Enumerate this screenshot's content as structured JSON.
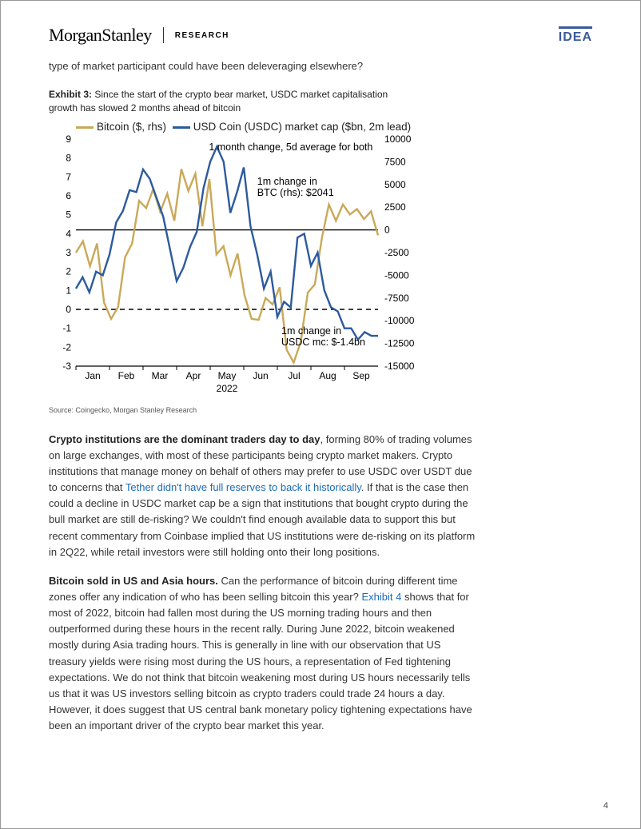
{
  "header": {
    "brand_first": "Morgan",
    "brand_second": "Stanley",
    "research": "RESEARCH",
    "idea": "IDEA"
  },
  "intro": "type of market participant could have been deleveraging elsewhere?",
  "exhibit": {
    "label": "Exhibit 3:",
    "caption": "Since the start of the crypto bear market, USDC market capitalisation growth has slowed 2 months ahead of bitcoin",
    "legend_bitcoin": "Bitcoin ($, rhs)",
    "legend_usdc": "USD Coin (USDC) market cap ($bn, 2m lead)",
    "colors": {
      "bitcoin": "#c9a959",
      "usdc": "#2c5a9e",
      "grid": "#d8d8d8",
      "axis": "#000000",
      "background": "#ffffff",
      "zero_dashed": "#000000"
    },
    "annotations": {
      "top": "1 month change, 5d average for both",
      "btc_label1": "1m change in",
      "btc_label2": "BTC (rhs): $2041",
      "usdc_label1": "1m change in",
      "usdc_label2": "USDC mc: $-1.4bn"
    },
    "left_axis": {
      "min": -3,
      "max": 9,
      "ticks": [
        -3,
        -2,
        -1,
        0,
        1,
        2,
        3,
        4,
        5,
        6,
        7,
        8,
        9
      ]
    },
    "right_axis": {
      "min": -15000,
      "max": 10000,
      "ticks": [
        -15000,
        -12500,
        -10000,
        -7500,
        -5000,
        -2500,
        0,
        2500,
        5000,
        7500,
        10000
      ],
      "zero_at_left_value": 4.2
    },
    "x_axis": {
      "labels": [
        "Jan",
        "Feb",
        "Mar",
        "Apr",
        "May",
        "Jun",
        "Jul",
        "Aug",
        "Sep"
      ],
      "year": "2022"
    },
    "series_bitcoin_rhs": [
      -2500,
      -1250,
      -4000,
      -1500,
      -8000,
      -9800,
      -8500,
      -3000,
      -1500,
      3200,
      2400,
      4500,
      2000,
      4000,
      1000,
      6700,
      4300,
      6200,
      400,
      5600,
      -2700,
      -1800,
      -5000,
      -2600,
      -7200,
      -9800,
      -9900,
      -7500,
      -8200,
      -6300,
      -13200,
      -14600,
      -12300,
      -6900,
      -6000,
      -900,
      2800,
      1000,
      2800,
      1700,
      2300,
      1200,
      2041,
      -600
    ],
    "series_usdc_left": [
      1.1,
      1.7,
      0.9,
      2.0,
      1.8,
      2.9,
      4.6,
      5.2,
      6.3,
      6.2,
      7.4,
      6.9,
      5.9,
      4.9,
      3.2,
      1.5,
      2.2,
      3.3,
      4.1,
      6.4,
      7.8,
      8.6,
      7.8,
      5.1,
      6.2,
      7.5,
      4.4,
      2.9,
      1.1,
      2.0,
      -0.4,
      0.4,
      0.1,
      3.8,
      4.0,
      2.3,
      3.0,
      1.0,
      0.1,
      -0.1,
      -1.0,
      -1.0,
      -1.6,
      -1.2,
      -1.4,
      -1.4
    ],
    "source": "Source: Coingecko, Morgan Stanley Research"
  },
  "para1": {
    "lead": "Crypto institutions are the dominant traders day to day",
    "body1": ", forming 80% of trading volumes on large exchanges, with most of these participants being crypto market makers. Crypto institutions that manage money on behalf of others may prefer to use USDC over USDT due to concerns that ",
    "link": "Tether didn't have full reserves to back it historically",
    "body2": ". If that is the case then could a decline in USDC market cap be a sign that institutions that bought crypto during the bull market are still de-risking? We couldn't find enough available data to support this but recent commentary from Coinbase implied that US institutions were de-risking on its platform in 2Q22, while retail investors were still holding onto their long positions."
  },
  "para2": {
    "lead": "Bitcoin sold in US and Asia hours.",
    "body1": " Can the performance of bitcoin during different time zones offer any indication of who has been selling bitcoin this year? ",
    "link": "Exhibit 4",
    "body2": " shows that for most of 2022, bitcoin had fallen most during the US morning trading hours and then outperformed during these hours in the recent rally. During June 2022, bitcoin weakened mostly during Asia trading hours. This is generally in line with our observation that US treasury yields were rising most during the US hours, a representation of Fed tightening expectations. We do not think that bitcoin weakening most during US hours necessarily tells us that it was US investors selling bitcoin as crypto traders could trade 24 hours a day. However, it does suggest that US central bank monetary policy tightening expectations have been an important driver of the crypto bear market this year."
  },
  "page_number": "4"
}
